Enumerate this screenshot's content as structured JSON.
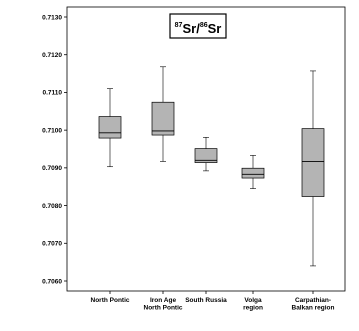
{
  "chart_data": {
    "type": "box",
    "title_parts": {
      "iso1_mass": "87",
      "iso1_elem": "Sr",
      "separator": "/",
      "iso2_mass": "86",
      "iso2_elem": "Sr"
    },
    "ylim": [
      0.7055,
      0.7132
    ],
    "y_ticks": [
      0.706,
      0.707,
      0.708,
      0.709,
      0.71,
      0.711,
      0.712,
      0.713
    ],
    "y_tick_labels": [
      "0.7060",
      "0.7070",
      "0.7080",
      "0.7090",
      "0.7100",
      "0.7110",
      "0.7120",
      "0.7130"
    ],
    "grid": false,
    "legend": "none",
    "box_color": "#b4b4b4",
    "categories": [
      {
        "lines": [
          "North Pontic"
        ]
      },
      {
        "lines": [
          "Iron Age",
          "North Pontic"
        ]
      },
      {
        "lines": [
          "South Russia"
        ]
      },
      {
        "lines": [
          "Volga",
          "region"
        ]
      },
      {
        "lines": [
          "Carpathian-",
          "Balkan region"
        ]
      }
    ],
    "boxes": [
      {
        "min": 0.70903,
        "q1": 0.70979,
        "median": 0.70993,
        "q3": 0.71036,
        "max": 0.7111
      },
      {
        "min": 0.70917,
        "q1": 0.70987,
        "median": 0.70998,
        "q3": 0.71074,
        "max": 0.71168
      },
      {
        "min": 0.70892,
        "q1": 0.70914,
        "median": 0.7092,
        "q3": 0.70951,
        "max": 0.70981
      },
      {
        "min": 0.70845,
        "q1": 0.70873,
        "median": 0.70883,
        "q3": 0.70899,
        "max": 0.70933
      },
      {
        "min": 0.7064,
        "q1": 0.70824,
        "median": 0.70917,
        "q3": 0.71004,
        "max": 0.71157
      }
    ]
  }
}
